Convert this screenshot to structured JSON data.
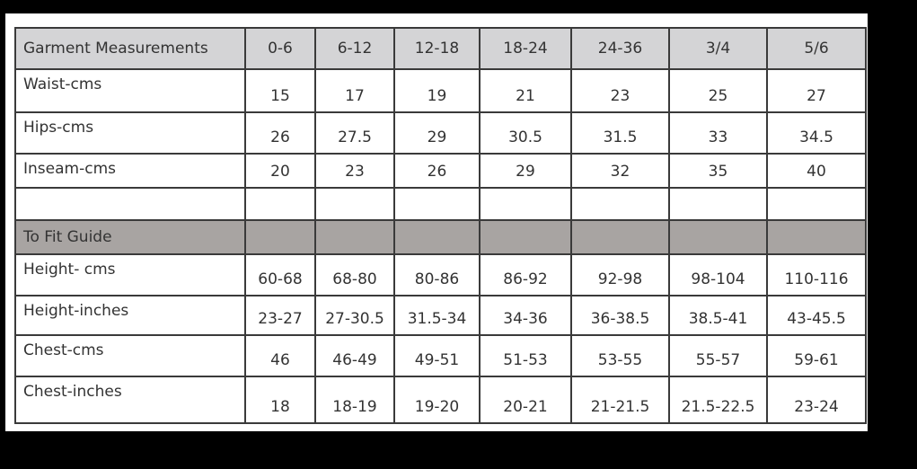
{
  "table": {
    "header": [
      "Garment Measurements",
      "0-6",
      "6-12",
      "12-18",
      "18-24",
      "24-36",
      "3/4",
      "5/6"
    ],
    "rows": [
      {
        "type": "data",
        "cells": [
          "Waist-cms",
          "15",
          "17",
          "19",
          "21",
          "23",
          "25",
          "27"
        ]
      },
      {
        "type": "data",
        "cells": [
          "Hips-cms",
          "26",
          "27.5",
          "29",
          "30.5",
          "31.5",
          "33",
          "34.5"
        ]
      },
      {
        "type": "data",
        "cells": [
          "Inseam-cms",
          "20",
          "23",
          "26",
          "29",
          "32",
          "35",
          "40"
        ]
      },
      {
        "type": "empty",
        "cells": [
          "",
          "",
          "",
          "",
          "",
          "",
          "",
          ""
        ]
      },
      {
        "type": "section",
        "cells": [
          "To Fit Guide",
          "",
          "",
          "",
          "",
          "",
          "",
          ""
        ]
      },
      {
        "type": "data",
        "cells": [
          "Height- cms",
          "60-68",
          "68-80",
          "80-86",
          "86-92",
          "92-98",
          "98-104",
          "110-116"
        ]
      },
      {
        "type": "data",
        "cells": [
          "Height-inches",
          "23-27",
          "27-30.5",
          "31.5-34",
          "34-36",
          "36-38.5",
          "38.5-41",
          "43-45.5"
        ]
      },
      {
        "type": "data",
        "cells": [
          "Chest-cms",
          "46",
          "46-49",
          "49-51",
          "51-53",
          "53-55",
          "55-57",
          "59-61"
        ]
      },
      {
        "type": "data",
        "cells": [
          "Chest-inches",
          "18",
          "18-19",
          "19-20",
          "20-21",
          "21-21.5",
          "21.5-22.5",
          "23-24"
        ]
      }
    ]
  },
  "colors": {
    "header_fill": "#d4d4d6",
    "section_fill": "#a8a4a2",
    "border": "#3a3a3a",
    "text": "#333333"
  }
}
